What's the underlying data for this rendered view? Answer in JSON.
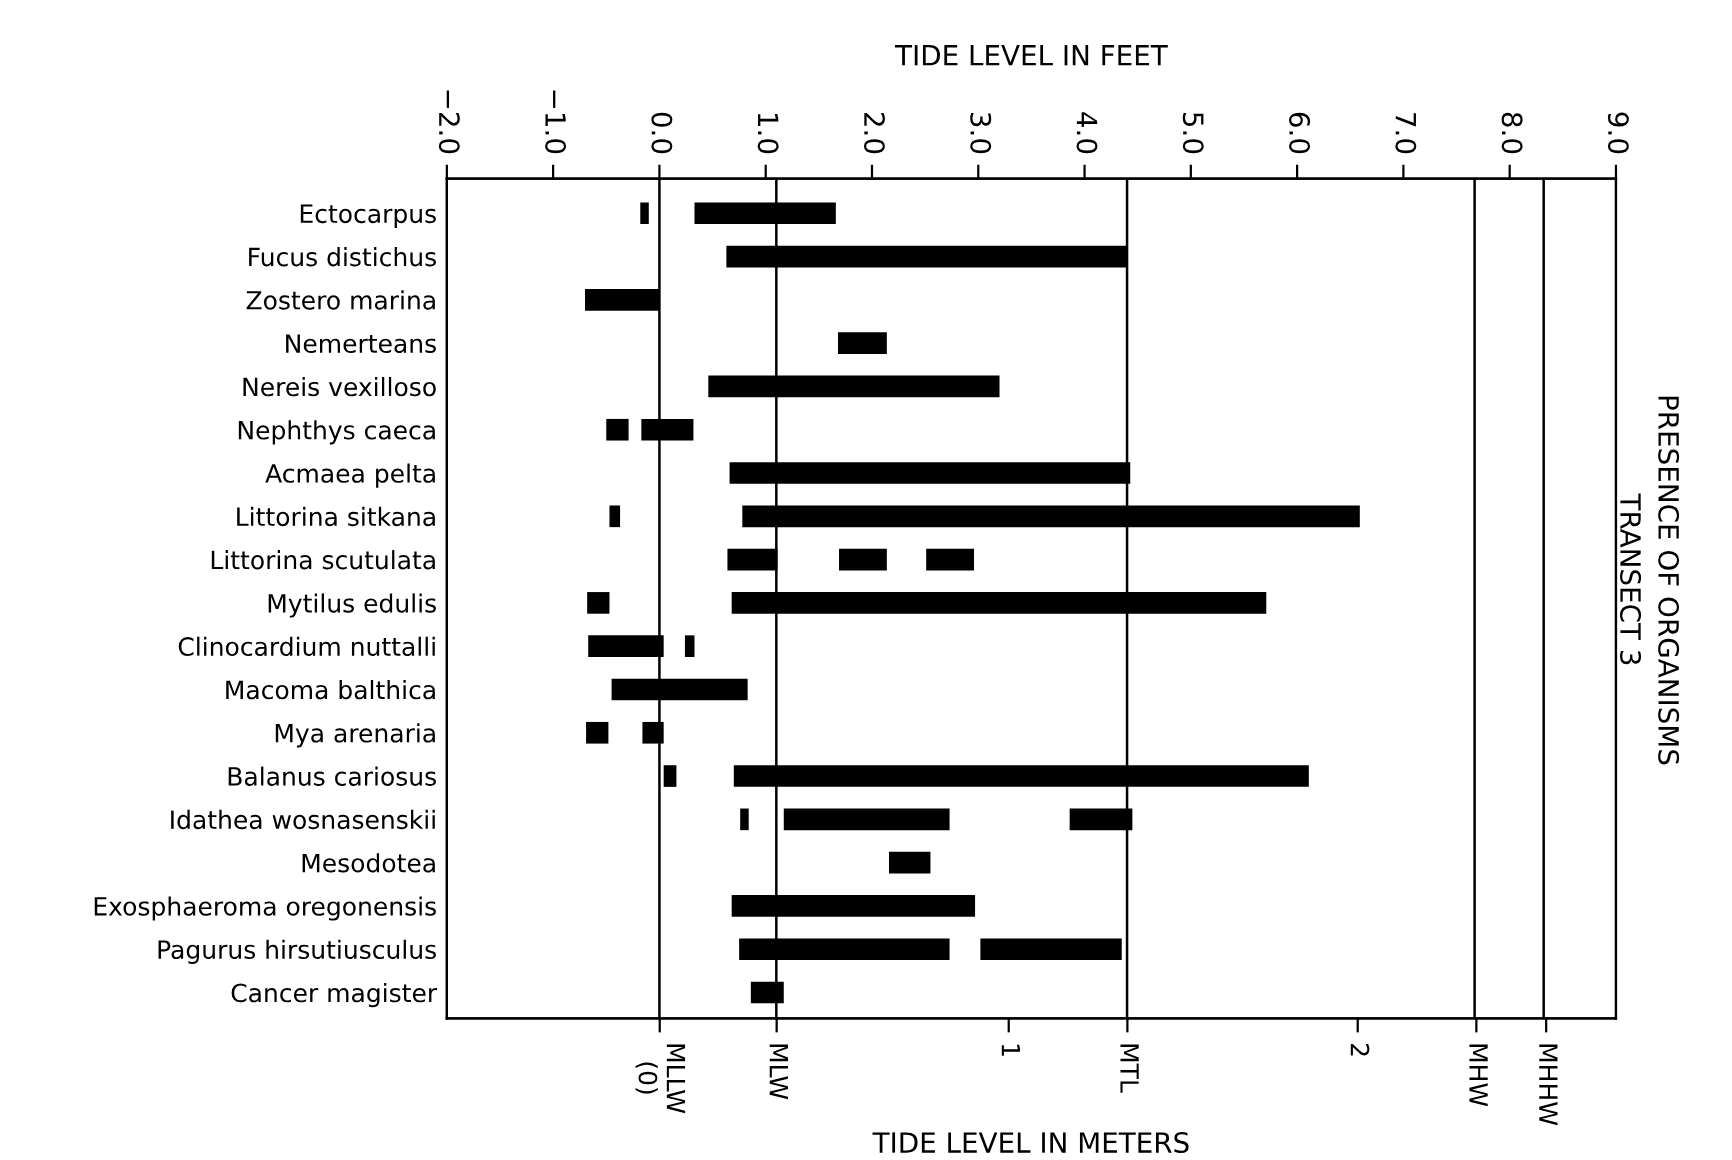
{
  "chart_data": {
    "type": "bar",
    "orientation": "horizontal",
    "title": "PRESENCE OF ORGANISMS",
    "subtitle": "TRANSECT 3",
    "xlabel": "TIDE LEVEL IN FEET",
    "x2label": "TIDE LEVEL IN METERS",
    "categories": [
      "Ectocarpus",
      "Fucus distichus",
      "Zostero marina",
      "Nemerteans",
      "Nereis vexilloso",
      "Nephthys caeca",
      "Acmaea pelta",
      "Littorina sitkana",
      "Littorina scutulata",
      "Mytilus edulis",
      "Clinocardium nuttalli",
      "Macoma balthica",
      "Mya arenaria",
      "Balanus cariosus",
      "Idathea wosnasenskii",
      "Mesodotea",
      "Exosphaeroma oregonensis",
      "Pagurus hirsutiusculus",
      "Cancer magister"
    ],
    "series": [
      {
        "color": "#000000",
        "base": [
          -0.18,
          0.63,
          -0.7,
          1.68,
          0.46,
          -0.5,
          0.66,
          -0.47,
          0.64,
          -0.68,
          -0.67,
          -0.45,
          -0.69,
          0.04,
          0.76,
          2.16,
          0.68,
          0.75,
          0.86
        ],
        "values": [
          0.08,
          3.77,
          0.7,
          0.46,
          2.74,
          0.21,
          3.77,
          0.1,
          0.47,
          0.21,
          0.71,
          1.28,
          0.21,
          0.12,
          0.08,
          0.39,
          2.29,
          1.98,
          0.31
        ]
      },
      {
        "color": "#000000",
        "base": [
          0.33,
          null,
          null,
          null,
          null,
          -0.17,
          null,
          0.78,
          1.69,
          0.68,
          0.24,
          null,
          -0.16,
          0.7,
          1.17,
          null,
          null,
          3.02,
          null
        ],
        "values": [
          1.33,
          null,
          null,
          null,
          null,
          0.49,
          null,
          5.81,
          0.45,
          5.03,
          0.09,
          null,
          0.2,
          5.41,
          1.56,
          null,
          null,
          1.33,
          null
        ]
      },
      {
        "color": "#000000",
        "base": [
          null,
          null,
          null,
          null,
          null,
          null,
          null,
          null,
          2.51,
          null,
          null,
          null,
          null,
          null,
          3.86,
          null,
          null,
          null,
          null
        ],
        "values": [
          null,
          null,
          null,
          null,
          null,
          null,
          null,
          null,
          0.45,
          null,
          null,
          null,
          null,
          null,
          0.59,
          null,
          null,
          null,
          null
        ]
      }
    ],
    "xlim": [
      -2.0,
      9.0
    ],
    "xticks": [
      {
        "value": -2,
        "label": "−2.0"
      },
      {
        "value": -1,
        "label": "−1.0"
      },
      {
        "value": 0,
        "label": "0.0"
      },
      {
        "value": 1,
        "label": "1.0"
      },
      {
        "value": 2,
        "label": "2.0"
      },
      {
        "value": 3,
        "label": "3.0"
      },
      {
        "value": 4,
        "label": "4.0"
      },
      {
        "value": 5,
        "label": "5.0"
      },
      {
        "value": 6,
        "label": "6.0"
      },
      {
        "value": 7,
        "label": "7.0"
      },
      {
        "value": 8,
        "label": "8.0"
      },
      {
        "value": 9,
        "label": "9.0"
      }
    ],
    "x2lim": [
      -0.61,
      2.74
    ],
    "x2ticks": [
      {
        "value": 0,
        "label": "MLLW\n(0)"
      },
      {
        "value": 0.335,
        "label": "MLW"
      },
      {
        "value": 1,
        "label": "1"
      },
      {
        "value": 1.34,
        "label": "MTL"
      },
      {
        "value": 2,
        "label": "2"
      },
      {
        "value": 2.34,
        "label": "MHW"
      },
      {
        "value": 2.54,
        "label": "MHHW"
      }
    ],
    "ref_lines": [
      {
        "axis": "x",
        "value": 0.0,
        "color": "#000000"
      },
      {
        "axis": "x",
        "value": 1.1,
        "color": "#000000"
      },
      {
        "axis": "x",
        "value": 4.4,
        "color": "#000000"
      },
      {
        "axis": "x",
        "value": 7.67,
        "color": "#000000"
      },
      {
        "axis": "x",
        "value": 8.32,
        "color": "#000000"
      }
    ],
    "tick_labels": "x",
    "grid": false
  }
}
